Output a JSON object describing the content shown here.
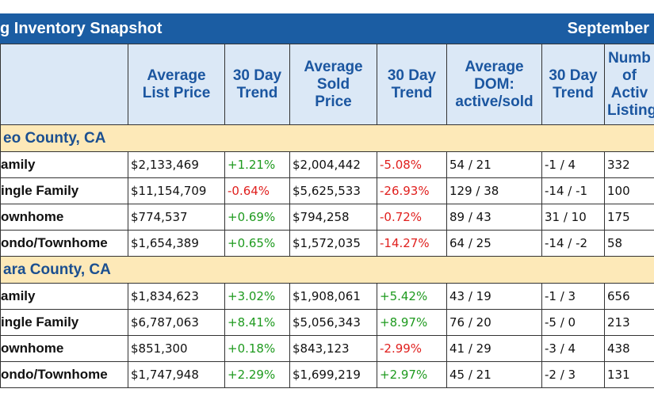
{
  "header": {
    "title": "g Inventory Snapshot",
    "date": "September"
  },
  "table": {
    "columns": [
      [],
      [
        "Average",
        "List Price"
      ],
      [
        "30 Day",
        "Trend"
      ],
      [
        "Average",
        "Sold",
        "Price"
      ],
      [
        "30 Day",
        "Trend"
      ],
      [
        "Average",
        "DOM:",
        "active/sold"
      ],
      [
        "30 Day",
        "Trend"
      ],
      [
        "Numb",
        "of",
        "Activ",
        "Listing"
      ]
    ],
    "sections": [
      {
        "name": "eo County, CA",
        "rows": [
          [
            "amily",
            "$2,133,469",
            "+1.21%",
            "$2,004,442",
            "-5.08%",
            "54 / 21",
            "-1 / 4",
            "332"
          ],
          [
            "ingle Family",
            "$11,154,709",
            "-0.64%",
            "$5,625,533",
            "-26.93%",
            "129 / 38",
            "-14 / -1",
            "100"
          ],
          [
            "ownhome",
            "$774,537",
            "+0.69%",
            "$794,258",
            "-0.72%",
            "89 / 43",
            "31 / 10",
            "175"
          ],
          [
            "ondo/Townhome",
            "$1,654,389",
            "+0.65%",
            "$1,572,035",
            "-14.27%",
            "64 / 25",
            "-14 / -2",
            "58"
          ]
        ]
      },
      {
        "name": "ara County, CA",
        "rows": [
          [
            "amily",
            "$1,834,623",
            "+3.02%",
            "$1,908,061",
            "+5.42%",
            "43 / 19",
            "-1 / 3",
            "656"
          ],
          [
            "ingle Family",
            "$6,787,063",
            "+8.41%",
            "$5,056,343",
            "+8.97%",
            "76 / 20",
            "-5 / 0",
            "213"
          ],
          [
            "ownhome",
            "$851,300",
            "+0.18%",
            "$843,123",
            "-2.99%",
            "41 / 29",
            "-3 / 4",
            "438"
          ],
          [
            "ondo/Townhome",
            "$1,747,948",
            "+2.29%",
            "$1,699,219",
            "+2.97%",
            "45 / 21",
            "-2 / 3",
            "131"
          ]
        ]
      }
    ]
  }
}
